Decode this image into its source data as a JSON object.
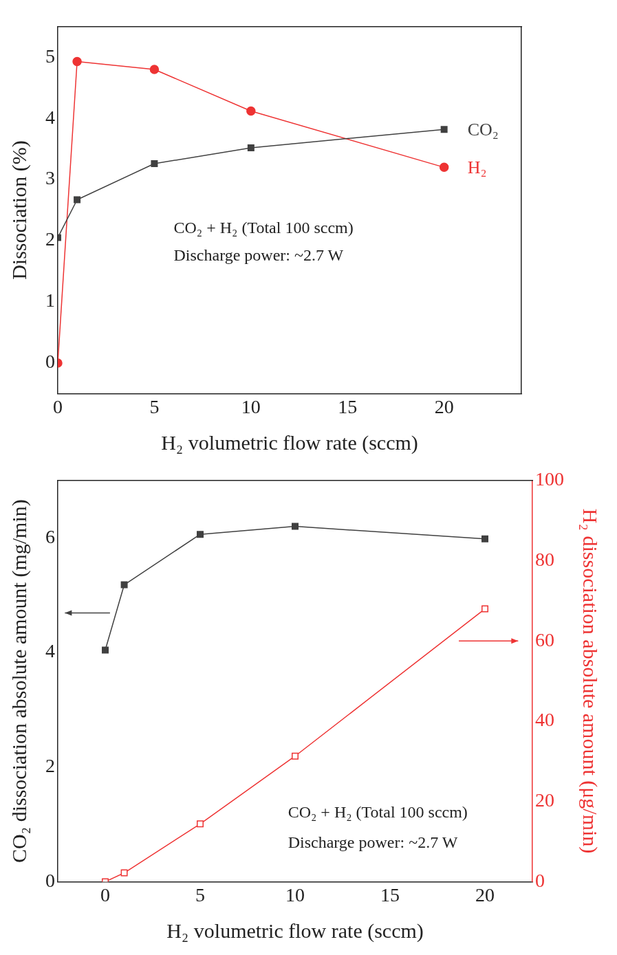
{
  "chart_data": [
    {
      "type": "line",
      "xlabel": "H₂ volumetric flow rate (sccm)",
      "ylabel": "Dissociation (%)",
      "xlim": [
        0,
        24
      ],
      "xticks": [
        0,
        5,
        10,
        15,
        20
      ],
      "ylim": [
        -0.5,
        5.5
      ],
      "yticks": [
        0,
        1,
        2,
        3,
        4,
        5
      ],
      "grid": false,
      "annotations": [
        "CO₂ + H₂ (Total 100 sccm)",
        "Discharge power: ~2.7 W"
      ],
      "series": [
        {
          "name": "CO₂",
          "color": "#404040",
          "marker": "square",
          "x": [
            0,
            1,
            5,
            10,
            20
          ],
          "values": [
            2.05,
            2.67,
            3.26,
            3.52,
            3.82
          ]
        },
        {
          "name": "H₂",
          "color": "#ee3333",
          "marker": "circle",
          "x": [
            0,
            1,
            5,
            10,
            20
          ],
          "values": [
            0,
            4.93,
            4.8,
            4.12,
            3.2
          ]
        }
      ]
    },
    {
      "type": "line",
      "xlabel": "H₂ volumetric flow rate (sccm)",
      "ylabel": "CO₂ dissociation absolute amount (mg/min)",
      "y2label": "H₂ dissociation absolute amount (μg/min)",
      "xlim": [
        -2.5,
        22.5
      ],
      "xticks": [
        0,
        5,
        10,
        15,
        20
      ],
      "ylim": [
        0,
        7
      ],
      "yticks": [
        0,
        2,
        4,
        6
      ],
      "y2lim": [
        0,
        100
      ],
      "y2ticks": [
        0,
        20,
        40,
        60,
        80,
        100
      ],
      "grid": false,
      "annotations": [
        "CO₂ + H₂ (Total 100 sccm)",
        "Discharge power: ~2.7 W"
      ],
      "series": [
        {
          "color": "#404040",
          "marker": "square",
          "x": [
            0,
            1,
            5,
            10,
            20
          ],
          "values": [
            4.04,
            5.18,
            6.06,
            6.2,
            5.98
          ]
        },
        {
          "color": "#ee3333",
          "marker": "square",
          "axis": "y2",
          "x": [
            0,
            1,
            5,
            10,
            20
          ],
          "values": [
            0,
            2.2,
            14.4,
            31.3,
            68
          ]
        }
      ]
    }
  ]
}
